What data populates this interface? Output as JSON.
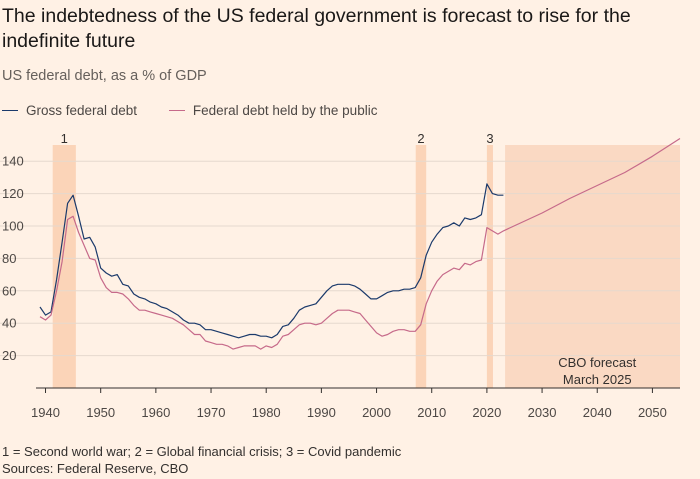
{
  "header": {
    "title": "The indebtedness of the US federal government is forecast to rise for the indefinite future",
    "subtitle": "US federal debt, as a % of GDP"
  },
  "footer": {
    "footnote": "1 = Second world war; 2 = Global financial crisis; 3 = Covid pandemic",
    "sources": "Sources: Federal Reserve, CBO"
  },
  "chart_data": {
    "type": "line",
    "title": "The indebtedness of the US federal government is forecast to rise for the indefinite future",
    "ylabel": "US federal debt, as a % of GDP",
    "xlim": [
      1939,
      2055
    ],
    "ylim": [
      0,
      150
    ],
    "xticks": [
      1940,
      1950,
      1960,
      1970,
      1980,
      1990,
      2000,
      2010,
      2020,
      2030,
      2040,
      2050
    ],
    "yticks": [
      20,
      40,
      60,
      80,
      100,
      120,
      140
    ],
    "grid": true,
    "legend_position": "top-left",
    "colors": {
      "gross": "#1b3a6b",
      "public": "#c66a8a",
      "shade": "#fbd4b8",
      "forecast": "#fad9c3",
      "zero": "#33302e",
      "grid": "#e6d9ce"
    },
    "series": [
      {
        "name": "Gross federal debt",
        "x": [
          1939,
          1940,
          1941,
          1942,
          1943,
          1944,
          1945,
          1946,
          1947,
          1948,
          1949,
          1950,
          1951,
          1952,
          1953,
          1954,
          1955,
          1956,
          1957,
          1958,
          1959,
          1960,
          1961,
          1962,
          1963,
          1964,
          1965,
          1966,
          1967,
          1968,
          1969,
          1970,
          1971,
          1972,
          1973,
          1974,
          1975,
          1976,
          1977,
          1978,
          1979,
          1980,
          1981,
          1982,
          1983,
          1984,
          1985,
          1986,
          1987,
          1988,
          1989,
          1990,
          1991,
          1992,
          1993,
          1994,
          1995,
          1996,
          1997,
          1998,
          1999,
          2000,
          2001,
          2002,
          2003,
          2004,
          2005,
          2006,
          2007,
          2008,
          2009,
          2010,
          2011,
          2012,
          2013,
          2014,
          2015,
          2016,
          2017,
          2018,
          2019,
          2020,
          2021,
          2022,
          2023
        ],
        "values": [
          50,
          45,
          47,
          67,
          90,
          114,
          119,
          106,
          92,
          93,
          87,
          74,
          71,
          69,
          70,
          64,
          63,
          58,
          56,
          55,
          53,
          52,
          50,
          49,
          47,
          45,
          42,
          40,
          40,
          39,
          36,
          36,
          35,
          34,
          33,
          32,
          31,
          32,
          33,
          33,
          32,
          32,
          31,
          33,
          38,
          39,
          43,
          48,
          50,
          51,
          52,
          56,
          60,
          63,
          64,
          64,
          64,
          63,
          61,
          58,
          55,
          55,
          57,
          59,
          60,
          60,
          61,
          61,
          62,
          68,
          82,
          90,
          95,
          99,
          100,
          102,
          100,
          105,
          104,
          105,
          107,
          126,
          120,
          119,
          119
        ]
      },
      {
        "name": "Federal debt held by the public",
        "x": [
          1939,
          1940,
          1941,
          1942,
          1943,
          1944,
          1945,
          1946,
          1947,
          1948,
          1949,
          1950,
          1951,
          1952,
          1953,
          1954,
          1955,
          1956,
          1957,
          1958,
          1959,
          1960,
          1961,
          1962,
          1963,
          1964,
          1965,
          1966,
          1967,
          1968,
          1969,
          1970,
          1971,
          1972,
          1973,
          1974,
          1975,
          1976,
          1977,
          1978,
          1979,
          1980,
          1981,
          1982,
          1983,
          1984,
          1985,
          1986,
          1987,
          1988,
          1989,
          1990,
          1991,
          1992,
          1993,
          1994,
          1995,
          1996,
          1997,
          1998,
          1999,
          2000,
          2001,
          2002,
          2003,
          2004,
          2005,
          2006,
          2007,
          2008,
          2009,
          2010,
          2011,
          2012,
          2013,
          2014,
          2015,
          2016,
          2017,
          2018,
          2019,
          2020,
          2021,
          2022,
          2023,
          2030,
          2035,
          2040,
          2045,
          2050,
          2055
        ],
        "values": [
          44,
          42,
          45,
          60,
          78,
          104,
          106,
          96,
          88,
          80,
          79,
          68,
          62,
          59,
          59,
          58,
          55,
          51,
          48,
          48,
          47,
          46,
          45,
          44,
          43,
          41,
          39,
          36,
          33,
          33,
          29,
          28,
          27,
          27,
          26,
          24,
          25,
          26,
          26,
          26,
          24,
          26,
          25,
          27,
          32,
          33,
          36,
          39,
          40,
          40,
          39,
          40,
          43,
          46,
          48,
          48,
          48,
          47,
          46,
          42,
          38,
          34,
          32,
          33,
          35,
          36,
          36,
          35,
          35,
          39,
          52,
          60,
          66,
          70,
          72,
          74,
          73,
          77,
          76,
          78,
          79,
          99,
          97,
          95,
          97,
          108,
          117,
          125,
          133,
          143,
          154
        ]
      }
    ],
    "shaded_periods": [
      {
        "label": "1",
        "start": 1941.3,
        "end": 1945.5
      },
      {
        "label": "2",
        "start": 2007.1,
        "end": 2009.0
      },
      {
        "label": "3",
        "start": 2020.0,
        "end": 2021.1
      }
    ],
    "forecast_region": {
      "start": 2023.3,
      "end": 2055,
      "label_line1": "CBO forecast",
      "label_line2": "March 2025"
    }
  }
}
